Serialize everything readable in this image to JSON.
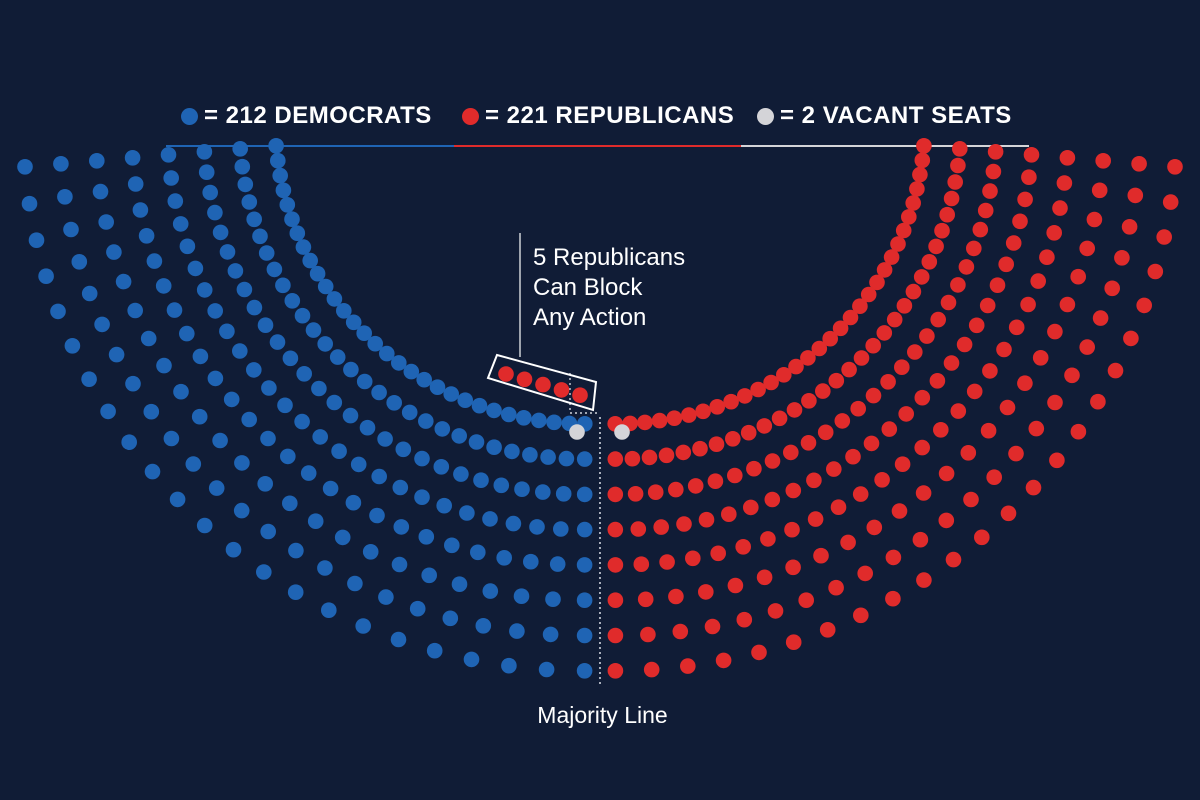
{
  "colors": {
    "background": "#101c36",
    "democrat": "#1f64b4",
    "republican": "#e02b2b",
    "vacant": "#d4d4d8",
    "annotation_line": "#ffffff"
  },
  "legend": {
    "democrats": "= 212 DEMOCRATS",
    "republicans": "= 221 REPUBLICANS",
    "vacant": "= 2 VACANT SEATS"
  },
  "seats": {
    "democrats": 212,
    "republicans": 221,
    "vacant": 2,
    "highlighted_republicans": 5
  },
  "annotation": {
    "line1": "5 Republicans",
    "line2": "Can Block",
    "line3": "Any Action"
  },
  "majority_line_label": "Majority Line"
}
